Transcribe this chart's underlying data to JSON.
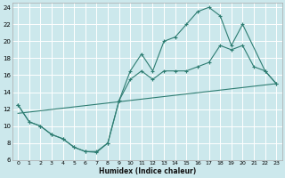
{
  "xlabel": "Humidex (Indice chaleur)",
  "bg_color": "#cce8ec",
  "grid_color": "#ffffff",
  "line_color": "#2e7d72",
  "xlim": [
    -0.5,
    23.5
  ],
  "ylim": [
    6,
    24.5
  ],
  "xticks": [
    0,
    1,
    2,
    3,
    4,
    5,
    6,
    7,
    8,
    9,
    10,
    11,
    12,
    13,
    14,
    15,
    16,
    17,
    18,
    19,
    20,
    21,
    22,
    23
  ],
  "yticks": [
    6,
    8,
    10,
    12,
    14,
    16,
    18,
    20,
    22,
    24
  ],
  "line1_x": [
    0,
    1,
    2,
    3,
    4,
    5,
    6,
    7,
    8,
    9,
    10,
    11,
    12,
    13,
    14,
    15,
    16,
    17,
    18,
    19,
    20,
    22,
    23
  ],
  "line1_y": [
    12.5,
    10.5,
    10.0,
    9.0,
    8.5,
    7.5,
    7.0,
    7.0,
    8.0,
    13.0,
    16.5,
    18.5,
    16.5,
    20.0,
    20.5,
    22.0,
    23.5,
    24.0,
    23.0,
    19.5,
    22.0,
    16.5,
    15.0
  ],
  "line2_x": [
    0,
    1,
    2,
    3,
    4,
    5,
    6,
    7,
    8,
    9,
    10,
    11,
    12,
    13,
    14,
    15,
    16,
    17,
    18,
    19,
    20,
    21,
    22,
    23
  ],
  "line2_y": [
    12.5,
    10.5,
    10.0,
    9.0,
    8.5,
    7.5,
    7.0,
    6.9,
    8.0,
    13.0,
    15.5,
    16.5,
    15.5,
    16.5,
    16.5,
    16.5,
    17.0,
    17.5,
    19.5,
    19.0,
    19.5,
    17.0,
    16.5,
    15.0
  ],
  "line3_x": [
    0,
    23
  ],
  "line3_y": [
    11.5,
    15.0
  ]
}
